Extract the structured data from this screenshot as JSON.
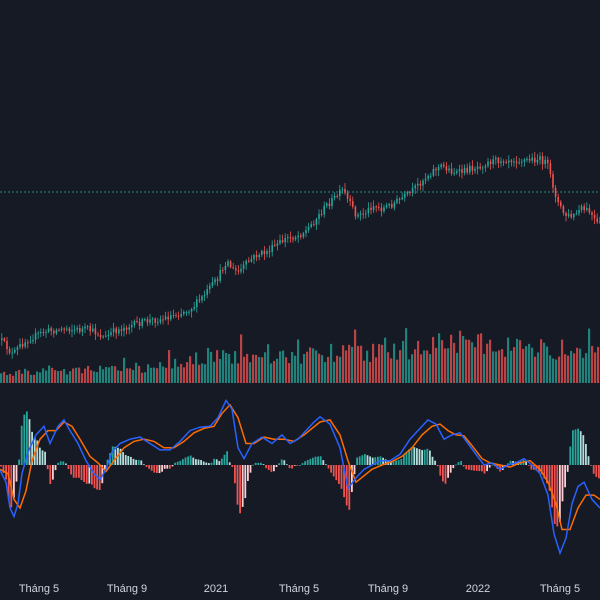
{
  "chart_data": {
    "type": "candlestick",
    "colors": {
      "background": "#161a25",
      "up": "#26a69a",
      "down": "#ef5350",
      "macd_line": "#2962ff",
      "signal_line": "#ff6d00",
      "hist_up_strong": "#26a69a",
      "hist_up_weak": "#b2dfdb",
      "hist_down_strong": "#ef5350",
      "hist_down_weak": "#ffcdd2",
      "reference_line": "#26a69a",
      "axis_text": "#d1d4dc"
    },
    "x_axis": {
      "tick_labels": [
        "Tháng 5",
        "Tháng 9",
        "2021",
        "Tháng 5",
        "Tháng 9",
        "2022",
        "Tháng 5"
      ]
    },
    "price_path": [
      [
        0,
        40
      ],
      [
        6,
        47
      ],
      [
        12,
        55
      ],
      [
        18,
        47
      ],
      [
        26,
        40
      ],
      [
        36,
        35
      ],
      [
        46,
        31
      ],
      [
        56,
        30
      ],
      [
        66,
        28
      ],
      [
        76,
        30
      ],
      [
        86,
        29
      ],
      [
        96,
        33
      ],
      [
        104,
        38
      ],
      [
        112,
        32
      ],
      [
        122,
        28
      ],
      [
        132,
        25
      ],
      [
        142,
        22
      ],
      [
        152,
        20
      ],
      [
        162,
        19
      ],
      [
        172,
        15
      ],
      [
        182,
        12
      ],
      [
        192,
        7
      ],
      [
        202,
        -3
      ],
      [
        210,
        -13
      ],
      [
        216,
        -20
      ],
      [
        222,
        -32
      ],
      [
        226,
        -40
      ],
      [
        232,
        -30
      ],
      [
        238,
        -28
      ],
      [
        246,
        -37
      ],
      [
        256,
        -45
      ],
      [
        266,
        -48
      ],
      [
        276,
        -55
      ],
      [
        286,
        -62
      ],
      [
        296,
        -64
      ],
      [
        306,
        -70
      ],
      [
        316,
        -82
      ],
      [
        326,
        -95
      ],
      [
        336,
        -104
      ],
      [
        342,
        -110
      ],
      [
        348,
        -98
      ],
      [
        356,
        -84
      ],
      [
        364,
        -87
      ],
      [
        372,
        -95
      ],
      [
        380,
        -91
      ],
      [
        390,
        -95
      ],
      [
        400,
        -101
      ],
      [
        410,
        -107
      ],
      [
        418,
        -116
      ],
      [
        426,
        -124
      ],
      [
        434,
        -131
      ],
      [
        442,
        -134
      ],
      [
        450,
        -129
      ],
      [
        458,
        -127
      ],
      [
        468,
        -131
      ],
      [
        478,
        -134
      ],
      [
        488,
        -138
      ],
      [
        498,
        -140
      ],
      [
        508,
        -141
      ],
      [
        518,
        -140
      ],
      [
        528,
        -140
      ],
      [
        538,
        -141
      ],
      [
        546,
        -137
      ],
      [
        552,
        -115
      ],
      [
        558,
        -95
      ],
      [
        564,
        -85
      ],
      [
        572,
        -83
      ],
      [
        580,
        -91
      ],
      [
        588,
        -89
      ],
      [
        596,
        -76
      ]
    ],
    "volume_path": [
      [
        0,
        0.22
      ],
      [
        20,
        0.24
      ],
      [
        40,
        0.26
      ],
      [
        60,
        0.28
      ],
      [
        80,
        0.27
      ],
      [
        100,
        0.3
      ],
      [
        120,
        0.31
      ],
      [
        140,
        0.33
      ],
      [
        160,
        0.36
      ],
      [
        180,
        0.45
      ],
      [
        200,
        0.55
      ],
      [
        220,
        0.65
      ],
      [
        240,
        0.58
      ],
      [
        260,
        0.6
      ],
      [
        280,
        0.62
      ],
      [
        300,
        0.63
      ],
      [
        320,
        0.66
      ],
      [
        340,
        0.68
      ],
      [
        360,
        0.66
      ],
      [
        380,
        0.7
      ],
      [
        400,
        0.72
      ],
      [
        420,
        0.8
      ],
      [
        440,
        0.88
      ],
      [
        460,
        0.86
      ],
      [
        480,
        0.9
      ],
      [
        500,
        0.82
      ],
      [
        520,
        0.78
      ],
      [
        540,
        0.75
      ],
      [
        560,
        0.72
      ],
      [
        580,
        0.7
      ],
      [
        600,
        0.68
      ]
    ],
    "macd_path": [
      [
        0,
        -1.2
      ],
      [
        6,
        -4
      ],
      [
        10,
        -10
      ],
      [
        14,
        -12
      ],
      [
        18,
        -9
      ],
      [
        22,
        -2
      ],
      [
        28,
        3
      ],
      [
        36,
        7
      ],
      [
        44,
        9
      ],
      [
        50,
        5
      ],
      [
        58,
        9
      ],
      [
        64,
        10.5
      ],
      [
        70,
        8
      ],
      [
        78,
        5
      ],
      [
        86,
        1
      ],
      [
        94,
        -2
      ],
      [
        100,
        -3.4
      ],
      [
        106,
        -1
      ],
      [
        112,
        3
      ],
      [
        120,
        5
      ],
      [
        130,
        6
      ],
      [
        140,
        6.5
      ],
      [
        150,
        5
      ],
      [
        160,
        3.5
      ],
      [
        170,
        3.5
      ],
      [
        180,
        5.5
      ],
      [
        190,
        8
      ],
      [
        200,
        8.8
      ],
      [
        210,
        9
      ],
      [
        218,
        11
      ],
      [
        226,
        15
      ],
      [
        232,
        13
      ],
      [
        238,
        4
      ],
      [
        244,
        1.5
      ],
      [
        252,
        5
      ],
      [
        262,
        6.5
      ],
      [
        272,
        5
      ],
      [
        282,
        7
      ],
      [
        290,
        5
      ],
      [
        298,
        6
      ],
      [
        306,
        8
      ],
      [
        314,
        10
      ],
      [
        320,
        11.2
      ],
      [
        330,
        9.5
      ],
      [
        340,
        4
      ],
      [
        348,
        -5.5
      ],
      [
        356,
        -3
      ],
      [
        364,
        -1
      ],
      [
        372,
        0
      ],
      [
        380,
        1
      ],
      [
        390,
        1
      ],
      [
        400,
        2.5
      ],
      [
        410,
        6
      ],
      [
        420,
        8.5
      ],
      [
        428,
        10.5
      ],
      [
        436,
        9.5
      ],
      [
        444,
        6
      ],
      [
        452,
        7
      ],
      [
        460,
        7.5
      ],
      [
        468,
        5
      ],
      [
        476,
        2.5
      ],
      [
        484,
        0
      ],
      [
        492,
        0.5
      ],
      [
        500,
        -1
      ],
      [
        508,
        0
      ],
      [
        516,
        0.5
      ],
      [
        524,
        1.5
      ],
      [
        532,
        0
      ],
      [
        540,
        -2
      ],
      [
        548,
        -7
      ],
      [
        554,
        -16
      ],
      [
        560,
        -20.5
      ],
      [
        566,
        -17
      ],
      [
        572,
        -9
      ],
      [
        578,
        -5
      ],
      [
        584,
        -4
      ],
      [
        592,
        -8
      ],
      [
        600,
        -10
      ]
    ],
    "signal_path": [
      [
        0,
        -1
      ],
      [
        8,
        -2
      ],
      [
        14,
        -8
      ],
      [
        20,
        -10
      ],
      [
        26,
        -6
      ],
      [
        32,
        1
      ],
      [
        40,
        6
      ],
      [
        48,
        8
      ],
      [
        56,
        8
      ],
      [
        64,
        10
      ],
      [
        72,
        9
      ],
      [
        80,
        6
      ],
      [
        90,
        2
      ],
      [
        98,
        0.5
      ],
      [
        106,
        -1.5
      ],
      [
        114,
        1
      ],
      [
        124,
        4
      ],
      [
        134,
        5.5
      ],
      [
        144,
        6
      ],
      [
        154,
        5.5
      ],
      [
        164,
        4
      ],
      [
        174,
        4
      ],
      [
        184,
        5.5
      ],
      [
        194,
        7.5
      ],
      [
        204,
        8.5
      ],
      [
        214,
        9
      ],
      [
        222,
        12
      ],
      [
        230,
        14
      ],
      [
        238,
        11
      ],
      [
        246,
        5
      ],
      [
        254,
        5
      ],
      [
        264,
        6.5
      ],
      [
        274,
        6
      ],
      [
        284,
        6
      ],
      [
        294,
        5.5
      ],
      [
        304,
        7
      ],
      [
        312,
        8.5
      ],
      [
        320,
        10
      ],
      [
        330,
        10.5
      ],
      [
        340,
        7
      ],
      [
        348,
        1
      ],
      [
        356,
        -4
      ],
      [
        364,
        -2.5
      ],
      [
        372,
        -1
      ],
      [
        382,
        0
      ],
      [
        392,
        0.8
      ],
      [
        402,
        2
      ],
      [
        412,
        4
      ],
      [
        422,
        7
      ],
      [
        432,
        9
      ],
      [
        440,
        9.5
      ],
      [
        448,
        8
      ],
      [
        456,
        7
      ],
      [
        464,
        6.8
      ],
      [
        472,
        4.5
      ],
      [
        482,
        1.5
      ],
      [
        490,
        0.5
      ],
      [
        500,
        0
      ],
      [
        510,
        -0.5
      ],
      [
        520,
        0.5
      ],
      [
        530,
        1
      ],
      [
        540,
        -1
      ],
      [
        548,
        -4
      ],
      [
        556,
        -9
      ],
      [
        562,
        -15
      ],
      [
        570,
        -15
      ],
      [
        578,
        -10
      ],
      [
        586,
        -7
      ],
      [
        594,
        -7
      ],
      [
        600,
        -8
      ]
    ],
    "macd_ylim": [
      -22,
      16
    ]
  }
}
